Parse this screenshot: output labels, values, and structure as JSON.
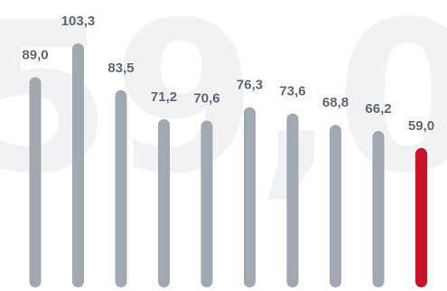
{
  "chart_data": {
    "type": "bar",
    "title": "",
    "xlabel": "",
    "ylabel": "",
    "ylim": [
      0,
      120
    ],
    "grid": false,
    "values": [
      89.0,
      103.3,
      83.5,
      71.2,
      70.6,
      76.3,
      73.6,
      68.8,
      66.2,
      59.0
    ],
    "data_labels": [
      "89,0",
      "103,3",
      "83,5",
      "71,2",
      "70,6",
      "76,3",
      "73,6",
      "68,8",
      "66,2",
      "59,0"
    ],
    "highlight_index": 9,
    "background_text": "59,0"
  },
  "colors": {
    "bar": "#a2a8b2",
    "highlight_bar": "#c8142a",
    "label": "#5d6772",
    "background_text": "#f1f2f4"
  }
}
